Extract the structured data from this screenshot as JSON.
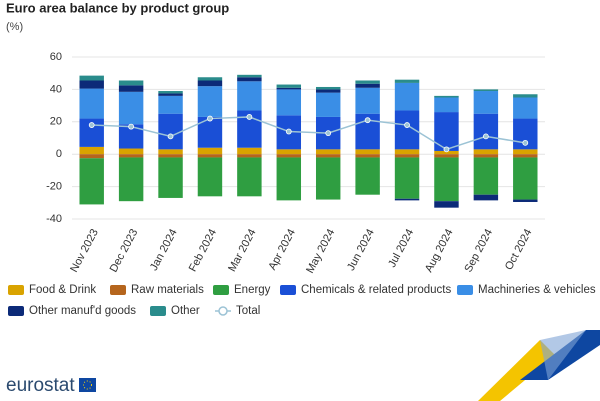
{
  "chart_data": {
    "type": "stacked-bar-line",
    "title": "Euro area balance by product group",
    "subtitle": "(%)",
    "logo": "eurostat",
    "categories": [
      "Nov 2023",
      "Dec 2023",
      "Jan 2024",
      "Feb 2024",
      "Mar 2024",
      "Apr 2024",
      "May 2024",
      "Jun 2024",
      "Jul 2024",
      "Aug 2024",
      "Sep 2024",
      "Oct 2024"
    ],
    "ylim": [
      -40,
      60
    ],
    "yticks": [
      -40,
      -20,
      0,
      20,
      40,
      60
    ],
    "grid": true,
    "series": [
      {
        "name": "Food & Drink",
        "color": "#d9a300",
        "values": [
          4.5,
          3.5,
          3,
          4,
          4,
          3,
          3,
          3,
          3,
          2,
          3,
          3
        ]
      },
      {
        "name": "Raw materials",
        "color": "#b5651d",
        "values": [
          -2.5,
          -2,
          -2,
          -2,
          -2,
          -2,
          -2,
          -2,
          -2,
          -2,
          -2,
          -2
        ]
      },
      {
        "name": "Energy",
        "color": "#2f9e41",
        "values": [
          -28.5,
          -27,
          -25,
          -24,
          -24,
          -26.5,
          -26,
          -23,
          -25.5,
          -27,
          -23,
          -26
        ]
      },
      {
        "name": "Chemicals & related products",
        "color": "#1a4fd6",
        "values": [
          17.5,
          15,
          22,
          19,
          23,
          21,
          20,
          22,
          24,
          24,
          22,
          19
        ]
      },
      {
        "name": "Machineries & vehicles",
        "color": "#3a8ee6",
        "values": [
          18.5,
          20,
          11,
          19,
          18,
          16,
          15,
          16,
          17,
          9,
          14,
          13
        ]
      },
      {
        "name": "Other manuf'd goods",
        "color": "#0c2a78",
        "values": [
          5,
          4,
          1.5,
          3.5,
          2.5,
          1,
          2,
          2.5,
          -1,
          -4,
          -3.5,
          -1.5
        ]
      },
      {
        "name": "Other",
        "color": "#2a8c8c",
        "values": [
          3,
          3,
          1.5,
          2,
          1.5,
          2,
          1.5,
          2,
          2,
          1,
          1,
          2
        ]
      },
      {
        "name": "Total",
        "type": "line",
        "color": "#9cc3d5",
        "values": [
          18,
          17,
          11,
          22,
          23,
          14,
          13,
          21,
          18,
          3,
          11,
          7
        ]
      }
    ]
  }
}
